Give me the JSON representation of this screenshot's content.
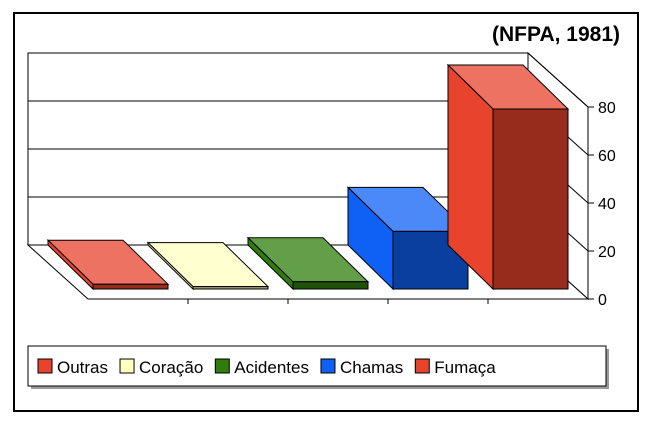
{
  "chart_data": {
    "type": "bar",
    "title": "(NFPA, 1981)",
    "categories": [
      "Outras",
      "Coração",
      "Acidentes",
      "Chamas",
      "Fumaça"
    ],
    "series": [
      {
        "values": [
          2,
          1,
          3,
          24,
          75
        ]
      }
    ],
    "colors": {
      "Outras": "#e8432d",
      "Coração": "#ffffc0",
      "Acidentes": "#2f7d0c",
      "Chamas": "#0f61f5",
      "Fumaça": "#e8432d"
    },
    "ylim": [
      0,
      80
    ],
    "yticks": [
      "0",
      "20",
      "40",
      "60",
      "80"
    ],
    "grid": true,
    "legend_position": "bottom",
    "view": "3d"
  }
}
